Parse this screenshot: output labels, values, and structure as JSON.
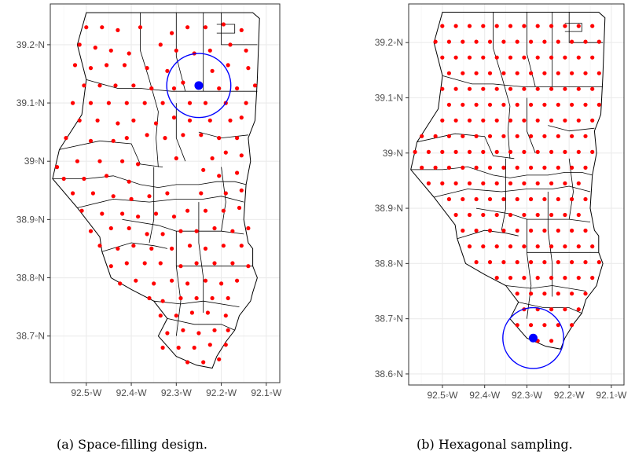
{
  "figure": {
    "caption_a": "(a) Space-filling design.",
    "caption_b": "(b) Hexagonal sampling.",
    "colors": {
      "points": "#ff0000",
      "highlight": "#0000ff",
      "grid": "#ebebeb",
      "boundary": "#000000"
    },
    "degree_symbol_note": "ticks rendered as printed"
  },
  "chart_data": [
    {
      "type": "scatter",
      "panel": "a",
      "title": "",
      "xlabel": "",
      "ylabel": "",
      "xlim": [
        -92.58,
        -92.07
      ],
      "ylim": [
        38.62,
        39.27
      ],
      "x_ticks": [
        -92.5,
        -92.4,
        -92.3,
        -92.2,
        -92.1
      ],
      "x_tick_labels": [
        "92.5◦W",
        "92.4◦W",
        "92.3◦W",
        "92.2◦W",
        "92.1◦W"
      ],
      "y_ticks": [
        38.7,
        38.8,
        38.9,
        39.0,
        39.1,
        39.2
      ],
      "y_tick_labels": [
        "38.7◦N",
        "38.8◦N",
        "38.9◦N",
        "39◦N",
        "39.1◦N",
        "39.2◦N"
      ],
      "grid": true,
      "highlight_point": {
        "lon": -92.25,
        "lat": 39.13,
        "radius_deg": 0.055
      },
      "points": [
        [
          -92.5,
          39.23
        ],
        [
          -92.465,
          39.23
        ],
        [
          -92.43,
          39.225
        ],
        [
          -92.38,
          39.23
        ],
        [
          -92.31,
          39.22
        ],
        [
          -92.275,
          39.23
        ],
        [
          -92.235,
          39.23
        ],
        [
          -92.195,
          39.235
        ],
        [
          -92.155,
          39.225
        ],
        [
          -92.515,
          39.2
        ],
        [
          -92.48,
          39.195
        ],
        [
          -92.445,
          39.19
        ],
        [
          -92.405,
          39.185
        ],
        [
          -92.335,
          39.2
        ],
        [
          -92.3,
          39.19
        ],
        [
          -92.26,
          39.185
        ],
        [
          -92.225,
          39.19
        ],
        [
          -92.18,
          39.2
        ],
        [
          -92.145,
          39.19
        ],
        [
          -92.525,
          39.165
        ],
        [
          -92.49,
          39.16
        ],
        [
          -92.455,
          39.165
        ],
        [
          -92.415,
          39.165
        ],
        [
          -92.365,
          39.16
        ],
        [
          -92.32,
          39.155
        ],
        [
          -92.22,
          39.155
        ],
        [
          -92.185,
          39.165
        ],
        [
          -92.14,
          39.16
        ],
        [
          -92.505,
          39.13
        ],
        [
          -92.47,
          39.13
        ],
        [
          -92.435,
          39.13
        ],
        [
          -92.395,
          39.13
        ],
        [
          -92.355,
          39.125
        ],
        [
          -92.305,
          39.125
        ],
        [
          -92.285,
          39.135
        ],
        [
          -92.205,
          39.125
        ],
        [
          -92.165,
          39.125
        ],
        [
          -92.125,
          39.13
        ],
        [
          -92.53,
          39.1
        ],
        [
          -92.49,
          39.1
        ],
        [
          -92.45,
          39.1
        ],
        [
          -92.41,
          39.1
        ],
        [
          -92.37,
          39.1
        ],
        [
          -92.33,
          39.1
        ],
        [
          -92.27,
          39.1
        ],
        [
          -92.235,
          39.1
        ],
        [
          -92.19,
          39.1
        ],
        [
          -92.145,
          39.1
        ],
        [
          -92.515,
          39.07
        ],
        [
          -92.475,
          39.07
        ],
        [
          -92.43,
          39.065
        ],
        [
          -92.395,
          39.07
        ],
        [
          -92.345,
          39.065
        ],
        [
          -92.305,
          39.075
        ],
        [
          -92.27,
          39.07
        ],
        [
          -92.225,
          39.07
        ],
        [
          -92.18,
          39.07
        ],
        [
          -92.155,
          39.075
        ],
        [
          -92.545,
          39.04
        ],
        [
          -92.49,
          39.035
        ],
        [
          -92.44,
          39.035
        ],
        [
          -92.41,
          39.04
        ],
        [
          -92.365,
          39.045
        ],
        [
          -92.325,
          39.04
        ],
        [
          -92.285,
          39.045
        ],
        [
          -92.245,
          39.045
        ],
        [
          -92.205,
          39.04
        ],
        [
          -92.165,
          39.04
        ],
        [
          -92.565,
          38.99
        ],
        [
          -92.52,
          39.0
        ],
        [
          -92.47,
          39.0
        ],
        [
          -92.42,
          39.0
        ],
        [
          -92.385,
          38.995
        ],
        [
          -92.3,
          39.005
        ],
        [
          -92.22,
          39.005
        ],
        [
          -92.19,
          39.015
        ],
        [
          -92.155,
          39.01
        ],
        [
          -92.55,
          38.97
        ],
        [
          -92.505,
          38.97
        ],
        [
          -92.455,
          38.975
        ],
        [
          -92.405,
          38.965
        ],
        [
          -92.24,
          38.985
        ],
        [
          -92.205,
          38.975
        ],
        [
          -92.165,
          38.98
        ],
        [
          -92.53,
          38.945
        ],
        [
          -92.485,
          38.945
        ],
        [
          -92.44,
          38.94
        ],
        [
          -92.4,
          38.935
        ],
        [
          -92.36,
          38.94
        ],
        [
          -92.32,
          38.945
        ],
        [
          -92.245,
          38.945
        ],
        [
          -92.19,
          38.945
        ],
        [
          -92.155,
          38.95
        ],
        [
          -92.51,
          38.915
        ],
        [
          -92.465,
          38.91
        ],
        [
          -92.42,
          38.91
        ],
        [
          -92.385,
          38.905
        ],
        [
          -92.345,
          38.91
        ],
        [
          -92.305,
          38.905
        ],
        [
          -92.275,
          38.915
        ],
        [
          -92.235,
          38.915
        ],
        [
          -92.195,
          38.915
        ],
        [
          -92.16,
          38.92
        ],
        [
          -92.49,
          38.88
        ],
        [
          -92.445,
          38.885
        ],
        [
          -92.405,
          38.885
        ],
        [
          -92.365,
          38.875
        ],
        [
          -92.33,
          38.875
        ],
        [
          -92.29,
          38.88
        ],
        [
          -92.255,
          38.88
        ],
        [
          -92.215,
          38.885
        ],
        [
          -92.175,
          38.88
        ],
        [
          -92.14,
          38.885
        ],
        [
          -92.47,
          38.855
        ],
        [
          -92.43,
          38.85
        ],
        [
          -92.395,
          38.855
        ],
        [
          -92.355,
          38.85
        ],
        [
          -92.31,
          38.85
        ],
        [
          -92.27,
          38.855
        ],
        [
          -92.235,
          38.85
        ],
        [
          -92.195,
          38.855
        ],
        [
          -92.155,
          38.855
        ],
        [
          -92.445,
          38.82
        ],
        [
          -92.41,
          38.825
        ],
        [
          -92.37,
          38.825
        ],
        [
          -92.335,
          38.825
        ],
        [
          -92.29,
          38.82
        ],
        [
          -92.255,
          38.825
        ],
        [
          -92.215,
          38.825
        ],
        [
          -92.175,
          38.825
        ],
        [
          -92.14,
          38.82
        ],
        [
          -92.425,
          38.79
        ],
        [
          -92.39,
          38.795
        ],
        [
          -92.35,
          38.79
        ],
        [
          -92.31,
          38.795
        ],
        [
          -92.275,
          38.79
        ],
        [
          -92.235,
          38.795
        ],
        [
          -92.2,
          38.79
        ],
        [
          -92.165,
          38.795
        ],
        [
          -92.36,
          38.765
        ],
        [
          -92.33,
          38.76
        ],
        [
          -92.29,
          38.765
        ],
        [
          -92.255,
          38.765
        ],
        [
          -92.22,
          38.765
        ],
        [
          -92.185,
          38.765
        ],
        [
          -92.335,
          38.735
        ],
        [
          -92.3,
          38.735
        ],
        [
          -92.265,
          38.74
        ],
        [
          -92.23,
          38.74
        ],
        [
          -92.19,
          38.735
        ],
        [
          -92.32,
          38.705
        ],
        [
          -92.285,
          38.71
        ],
        [
          -92.25,
          38.705
        ],
        [
          -92.215,
          38.71
        ],
        [
          -92.185,
          38.71
        ],
        [
          -92.33,
          38.68
        ],
        [
          -92.295,
          38.68
        ],
        [
          -92.26,
          38.68
        ],
        [
          -92.225,
          38.685
        ],
        [
          -92.19,
          38.685
        ],
        [
          -92.275,
          38.655
        ],
        [
          -92.24,
          38.655
        ],
        [
          -92.205,
          38.66
        ]
      ]
    },
    {
      "type": "scatter",
      "panel": "b",
      "title": "",
      "xlabel": "",
      "ylabel": "",
      "xlim": [
        -92.58,
        -92.07
      ],
      "ylim": [
        38.58,
        39.27
      ],
      "x_ticks": [
        -92.5,
        -92.4,
        -92.3,
        -92.2,
        -92.1
      ],
      "x_tick_labels": [
        "92.5◦W",
        "92.4◦W",
        "92.3◦W",
        "92.2◦W",
        "92.1◦W"
      ],
      "y_ticks": [
        38.6,
        38.7,
        38.8,
        38.9,
        39.0,
        39.1,
        39.2
      ],
      "y_tick_labels": [
        "38.6◦N",
        "38.7◦N",
        "38.8◦N",
        "38.9◦N",
        "39◦N",
        "39.1◦N",
        "39.2◦N"
      ],
      "grid": true,
      "highlight_point": {
        "lon": -92.285,
        "lat": 38.665,
        "radius_deg": 0.055
      },
      "hex_grid": {
        "lon_start": -92.565,
        "lon_step": 0.0323,
        "lat_start": 38.66,
        "lat_step": 0.0285,
        "lon_min": -92.575,
        "lon_max": -92.1,
        "lat_max": 39.245
      }
    }
  ]
}
